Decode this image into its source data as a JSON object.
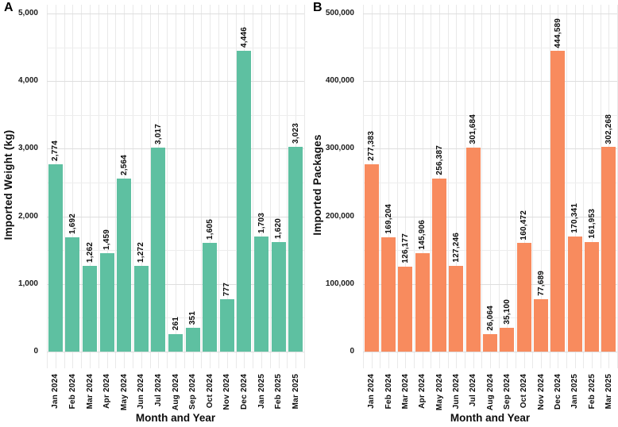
{
  "chart_data": [
    {
      "type": "bar",
      "panel_label": "A",
      "xlabel": "Month and Year",
      "ylabel": "Imported Weight (kg)",
      "ylim": [
        0,
        5000
      ],
      "grid": "on",
      "legend_position": "none",
      "bar_color": "#5ec0a1",
      "ytick_labels": [
        "0",
        "1,000",
        "2,000",
        "3,000",
        "4,000",
        "5,000"
      ],
      "categories": [
        "Jan 2024",
        "Feb 2024",
        "Mar 2024",
        "Apr 2024",
        "May 2024",
        "Jun 2024",
        "Jul 2024",
        "Aug 2024",
        "Sep 2024",
        "Oct 2024",
        "Nov 2024",
        "Dec 2024",
        "Jan 2025",
        "Feb 2025",
        "Mar 2025"
      ],
      "values": [
        2774,
        1692,
        1262,
        1459,
        2564,
        1272,
        3017,
        261,
        351,
        1605,
        777,
        4446,
        1703,
        1620,
        3023
      ],
      "value_labels": [
        "2,774",
        "1,692",
        "1,262",
        "1,459",
        "2,564",
        "1,272",
        "3,017",
        "261",
        "351",
        "1,605",
        "777",
        "4,446",
        "1,703",
        "1,620",
        "3,023"
      ]
    },
    {
      "type": "bar",
      "panel_label": "B",
      "xlabel": "Month and Year",
      "ylabel": "Imported Packages",
      "ylim": [
        0,
        500000
      ],
      "grid": "on",
      "legend_position": "none",
      "bar_color": "#f88b5e",
      "ytick_labels": [
        "0",
        "100,000",
        "200,000",
        "300,000",
        "400,000",
        "500,000"
      ],
      "categories": [
        "Jan 2024",
        "Feb 2024",
        "Mar 2024",
        "Apr 2024",
        "May 2024",
        "Jun 2024",
        "Jul 2024",
        "Aug 2024",
        "Sep 2024",
        "Oct 2024",
        "Nov 2024",
        "Dec 2024",
        "Jan 2025",
        "Feb 2025",
        "Mar 2025"
      ],
      "values": [
        277383,
        169204,
        126177,
        145906,
        256387,
        127246,
        301684,
        26064,
        35100,
        160472,
        77689,
        444589,
        170341,
        161953,
        302268
      ],
      "value_labels": [
        "277,383",
        "169,204",
        "126,177",
        "145,906",
        "256,387",
        "127,246",
        "301,684",
        "26,064",
        "35,100",
        "160,472",
        "77,689",
        "444,589",
        "170,341",
        "161,953",
        "302,268"
      ]
    }
  ]
}
